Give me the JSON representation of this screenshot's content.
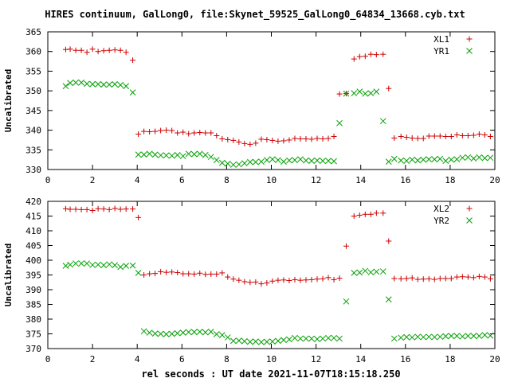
{
  "chart_data": {
    "title": "HIRES continuum, GalLong0, file:Skynet_59525_GalLong0_64834_13668.cyb.txt",
    "xlabel": "rel seconds : UT date 2021-11-07T18:15:18.250",
    "colors": {
      "series1": "#cc0000",
      "series2": "#00a000"
    },
    "panels": [
      {
        "type": "scatter",
        "ylabel": "Uncalibrated",
        "xlim": [
          0,
          20
        ],
        "ylim": [
          330,
          365
        ],
        "xticks": [
          0,
          2,
          4,
          6,
          8,
          10,
          12,
          14,
          16,
          18,
          20
        ],
        "yticks": [
          330,
          335,
          340,
          345,
          350,
          355,
          360,
          365
        ],
        "legend_position": "top-right",
        "series": [
          {
            "name": "XL1",
            "marker": "plus",
            "color": "#cc0000",
            "x": [
              0.8,
              1.0,
              1.25,
              1.5,
              1.75,
              2.0,
              2.25,
              2.5,
              2.75,
              3.0,
              3.25,
              3.5,
              3.8,
              4.05,
              4.3,
              4.55,
              4.8,
              5.05,
              5.3,
              5.55,
              5.8,
              6.05,
              6.3,
              6.55,
              6.8,
              7.05,
              7.3,
              7.55,
              7.8,
              8.05,
              8.3,
              8.55,
              8.8,
              9.05,
              9.3,
              9.55,
              9.8,
              10.05,
              10.3,
              10.55,
              10.8,
              11.05,
              11.3,
              11.55,
              11.8,
              12.05,
              12.3,
              12.55,
              12.8,
              13.05,
              13.35,
              13.7,
              13.95,
              14.2,
              14.45,
              14.7,
              15.0,
              15.25,
              15.5,
              15.8,
              16.05,
              16.3,
              16.55,
              16.8,
              17.05,
              17.3,
              17.55,
              17.8,
              18.05,
              18.3,
              18.55,
              18.8,
              19.05,
              19.3,
              19.55,
              19.8
            ],
            "y": [
              360.5,
              360.6,
              360.3,
              360.3,
              359.8,
              360.6,
              360.0,
              360.2,
              360.3,
              360.4,
              360.3,
              359.8,
              357.8,
              339.0,
              339.7,
              339.6,
              339.7,
              339.9,
              340.0,
              339.9,
              339.3,
              339.5,
              339.1,
              339.3,
              339.4,
              339.3,
              339.3,
              338.6,
              337.8,
              337.6,
              337.4,
              337.0,
              336.6,
              336.4,
              336.7,
              337.7,
              337.6,
              337.4,
              337.2,
              337.3,
              337.5,
              337.9,
              337.8,
              337.8,
              337.7,
              337.9,
              337.8,
              337.9,
              338.4,
              349.2,
              349.3,
              358.1,
              358.7,
              358.8,
              359.3,
              359.2,
              359.3,
              350.6,
              338.0,
              338.4,
              338.2,
              338.0,
              337.9,
              337.9,
              338.5,
              338.5,
              338.5,
              338.4,
              338.4,
              338.8,
              338.6,
              338.6,
              338.7,
              339.0,
              338.8,
              338.4
            ]
          },
          {
            "name": "YR1",
            "marker": "cross",
            "color": "#00a000",
            "x": [
              0.8,
              1.0,
              1.25,
              1.5,
              1.75,
              2.0,
              2.25,
              2.5,
              2.75,
              3.0,
              3.25,
              3.5,
              3.8,
              4.05,
              4.3,
              4.55,
              4.8,
              5.05,
              5.3,
              5.55,
              5.8,
              6.05,
              6.3,
              6.55,
              6.8,
              7.05,
              7.3,
              7.55,
              7.8,
              8.05,
              8.3,
              8.55,
              8.8,
              9.05,
              9.3,
              9.55,
              9.8,
              10.05,
              10.3,
              10.55,
              10.8,
              11.05,
              11.3,
              11.55,
              11.8,
              12.05,
              12.3,
              12.55,
              12.8,
              13.05,
              13.35,
              13.7,
              13.95,
              14.2,
              14.45,
              14.7,
              15.0,
              15.25,
              15.5,
              15.8,
              16.05,
              16.3,
              16.55,
              16.8,
              17.05,
              17.3,
              17.55,
              17.8,
              18.05,
              18.3,
              18.55,
              18.8,
              19.05,
              19.3,
              19.55,
              19.8
            ],
            "y": [
              351.2,
              352.0,
              352.1,
              352.1,
              351.8,
              351.7,
              351.7,
              351.6,
              351.6,
              351.7,
              351.5,
              351.2,
              349.6,
              333.8,
              333.8,
              334.0,
              333.8,
              333.6,
              333.6,
              333.5,
              333.7,
              333.4,
              334.0,
              333.9,
              334.0,
              333.7,
              333.2,
              332.4,
              331.7,
              331.5,
              331.2,
              331.3,
              331.6,
              331.9,
              331.9,
              332.0,
              332.4,
              332.6,
              332.4,
              332.0,
              332.3,
              332.4,
              332.6,
              332.3,
              332.2,
              332.3,
              332.2,
              332.2,
              332.1,
              341.8,
              349.3,
              349.4,
              349.8,
              349.3,
              349.4,
              349.8,
              342.3,
              332.0,
              332.7,
              332.3,
              332.2,
              332.5,
              332.3,
              332.5,
              332.6,
              332.6,
              332.7,
              332.2,
              332.5,
              332.6,
              333.0,
              333.1,
              332.8,
              333.1,
              332.9,
              333.0
            ]
          }
        ]
      },
      {
        "type": "scatter",
        "ylabel": "Uncalibrated",
        "xlim": [
          0,
          20
        ],
        "ylim": [
          370,
          420
        ],
        "xticks": [
          0,
          2,
          4,
          6,
          8,
          10,
          12,
          14,
          16,
          18,
          20
        ],
        "yticks": [
          370,
          375,
          380,
          385,
          390,
          395,
          400,
          405,
          410,
          415,
          420
        ],
        "legend_position": "top-right",
        "series": [
          {
            "name": "XL2",
            "marker": "plus",
            "color": "#cc0000",
            "x": [
              0.8,
              1.0,
              1.25,
              1.5,
              1.75,
              2.0,
              2.25,
              2.5,
              2.75,
              3.0,
              3.25,
              3.5,
              3.8,
              4.05,
              4.3,
              4.55,
              4.8,
              5.05,
              5.3,
              5.55,
              5.8,
              6.05,
              6.3,
              6.55,
              6.8,
              7.05,
              7.3,
              7.55,
              7.8,
              8.05,
              8.3,
              8.55,
              8.8,
              9.05,
              9.3,
              9.55,
              9.8,
              10.05,
              10.3,
              10.55,
              10.8,
              11.05,
              11.3,
              11.55,
              11.8,
              12.05,
              12.3,
              12.55,
              12.8,
              13.05,
              13.35,
              13.7,
              13.95,
              14.2,
              14.45,
              14.7,
              15.0,
              15.25,
              15.5,
              15.8,
              16.05,
              16.3,
              16.55,
              16.8,
              17.05,
              17.3,
              17.55,
              17.8,
              18.05,
              18.3,
              18.55,
              18.8,
              19.05,
              19.3,
              19.55,
              19.8
            ],
            "y": [
              417.5,
              417.3,
              417.3,
              417.2,
              417.2,
              416.9,
              417.5,
              417.4,
              417.2,
              417.6,
              417.3,
              417.4,
              417.4,
              414.5,
              395.0,
              395.4,
              395.5,
              396.1,
              395.9,
              396.0,
              395.8,
              395.4,
              395.4,
              395.3,
              395.6,
              395.2,
              395.3,
              395.3,
              395.7,
              394.3,
              393.6,
              393.2,
              392.7,
              392.5,
              392.6,
              392.0,
              392.3,
              392.9,
              393.2,
              393.3,
              393.1,
              393.4,
              393.2,
              393.3,
              393.4,
              393.6,
              393.7,
              394.1,
              393.4,
              393.9,
              404.8,
              415.0,
              415.3,
              415.6,
              415.6,
              416.0,
              416.0,
              406.5,
              393.8,
              393.7,
              393.8,
              394.0,
              393.5,
              393.6,
              393.7,
              393.5,
              393.8,
              393.8,
              393.8,
              394.3,
              394.4,
              394.3,
              394.1,
              394.5,
              394.3,
              393.7
            ]
          },
          {
            "name": "YR2",
            "marker": "cross",
            "color": "#00a000",
            "x": [
              0.8,
              1.0,
              1.25,
              1.5,
              1.75,
              2.0,
              2.25,
              2.5,
              2.75,
              3.0,
              3.25,
              3.5,
              3.8,
              4.05,
              4.3,
              4.55,
              4.8,
              5.05,
              5.3,
              5.55,
              5.8,
              6.05,
              6.3,
              6.55,
              6.8,
              7.05,
              7.3,
              7.55,
              7.8,
              8.05,
              8.3,
              8.55,
              8.8,
              9.05,
              9.3,
              9.55,
              9.8,
              10.05,
              10.3,
              10.55,
              10.8,
              11.05,
              11.3,
              11.55,
              11.8,
              12.05,
              12.3,
              12.55,
              12.8,
              13.05,
              13.35,
              13.7,
              13.95,
              14.2,
              14.45,
              14.7,
              15.0,
              15.25,
              15.5,
              15.8,
              16.05,
              16.3,
              16.55,
              16.8,
              17.05,
              17.3,
              17.55,
              17.8,
              18.05,
              18.3,
              18.55,
              18.8,
              19.05,
              19.3,
              19.55,
              19.8
            ],
            "y": [
              398.1,
              398.5,
              398.9,
              398.9,
              398.9,
              398.4,
              398.5,
              398.3,
              398.6,
              398.3,
              397.7,
              398.1,
              398.2,
              395.7,
              375.9,
              375.4,
              375.1,
              375.0,
              374.9,
              375.0,
              375.2,
              375.4,
              375.6,
              375.6,
              375.7,
              375.5,
              375.7,
              374.9,
              374.6,
              373.8,
              372.6,
              372.7,
              372.5,
              372.3,
              372.4,
              372.2,
              372.3,
              372.4,
              372.6,
              372.9,
              373.1,
              373.6,
              373.4,
              373.4,
              373.4,
              373.2,
              373.4,
              373.6,
              373.6,
              373.4,
              386.0,
              395.7,
              395.8,
              396.4,
              395.9,
              396.1,
              396.2,
              386.7,
              373.4,
              373.7,
              373.9,
              373.8,
              374.0,
              373.9,
              374.0,
              373.9,
              374.0,
              374.2,
              374.3,
              374.3,
              374.1,
              374.3,
              374.3,
              374.3,
              374.6,
              374.4
            ]
          }
        ]
      }
    ]
  }
}
